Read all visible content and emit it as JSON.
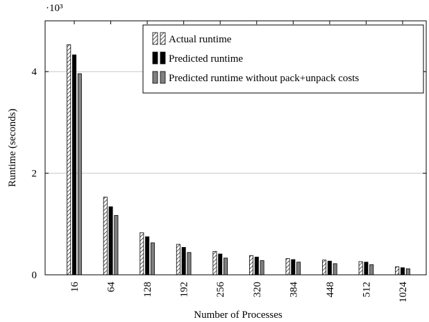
{
  "chart_data": {
    "type": "bar",
    "xlabel": "Number of Processes",
    "ylabel": "Runtime (seconds)",
    "y_multiplier_label": "·10³",
    "categories": [
      "16",
      "64",
      "128",
      "192",
      "256",
      "320",
      "384",
      "448",
      "512",
      "1024"
    ],
    "ylim": [
      0,
      5000
    ],
    "yticks": [
      0,
      2000,
      4000
    ],
    "ytick_labels": [
      "0",
      "2",
      "4"
    ],
    "grid": "horizontal",
    "legend_position": "top-right",
    "series": [
      {
        "name": "Actual runtime",
        "style": "hatched",
        "color": "#000000",
        "values": [
          4530,
          1530,
          830,
          600,
          460,
          380,
          320,
          290,
          260,
          160
        ]
      },
      {
        "name": "Predicted runtime",
        "style": "solid",
        "color": "#000000",
        "values": [
          4330,
          1340,
          750,
          540,
          410,
          350,
          300,
          270,
          250,
          140
        ]
      },
      {
        "name": "Predicted runtime without pack+unpack costs",
        "style": "solid",
        "color": "#808080",
        "values": [
          3960,
          1170,
          630,
          440,
          330,
          280,
          250,
          220,
          200,
          120
        ]
      }
    ]
  }
}
